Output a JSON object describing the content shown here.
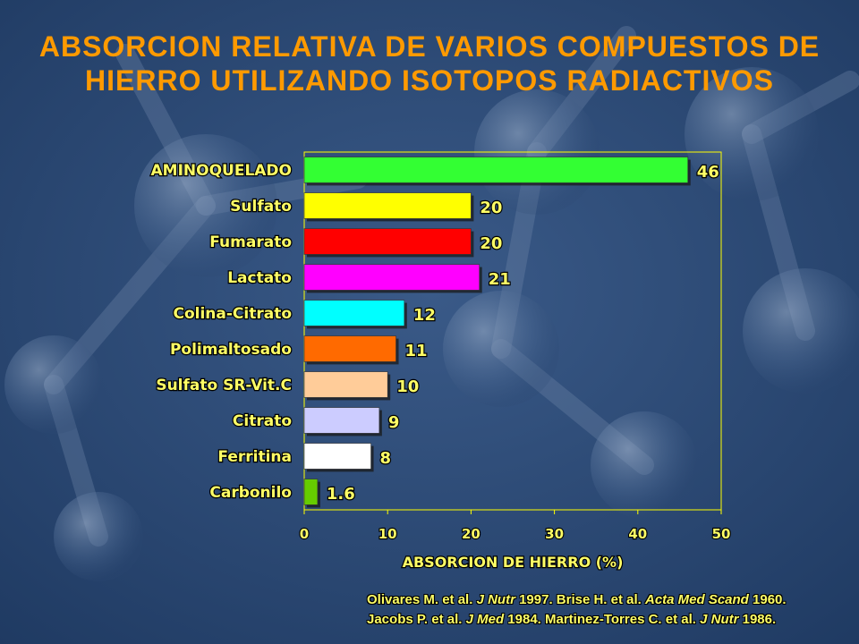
{
  "slide": {
    "title_line1": "ABSORCION RELATIVA DE VARIOS COMPUESTOS DE",
    "title_line2": "HIERRO UTILIZANDO ISOTOPOS RADIACTIVOS"
  },
  "colors": {
    "background": "#2a4670",
    "title": "#ff9a00",
    "label_text": "#ffff66",
    "plot_border": "#ffff00"
  },
  "chart_data": {
    "type": "bar",
    "orientation": "horizontal",
    "categories": [
      "AMINOQUELADO",
      "Sulfato",
      "Fumarato",
      "Lactato",
      "Colina-Citrato",
      "Polimaltosado",
      "Sulfato SR-Vit.C",
      "Citrato",
      "Ferritina",
      "Carbonilo"
    ],
    "values": [
      46,
      20,
      20,
      21,
      12,
      11,
      10,
      9,
      8,
      1.6
    ],
    "value_labels": [
      "46",
      "20",
      "20",
      "21",
      "12",
      "11",
      "10",
      "9",
      "8",
      "1.6"
    ],
    "bar_colors": [
      "#33ff33",
      "#ffff00",
      "#ff0000",
      "#ff00ff",
      "#00ffff",
      "#ff6a00",
      "#ffcc99",
      "#ccccff",
      "#ffffff",
      "#66cc00"
    ],
    "xlabel": "ABSORCION DE HIERRO (%)",
    "ylabel": "",
    "xlim": [
      0,
      50
    ],
    "xticks": [
      0,
      10,
      20,
      30,
      40,
      50
    ],
    "grid": false
  },
  "references": {
    "line1": [
      {
        "text": "Olivares M. et al. ",
        "italic": false
      },
      {
        "text": "J Nutr",
        "italic": true
      },
      {
        "text": " 1997. Brise H. et al. ",
        "italic": false
      },
      {
        "text": "Acta Med Scand",
        "italic": true
      },
      {
        "text": " 1960.",
        "italic": false
      }
    ],
    "line2": [
      {
        "text": "Jacobs P. et al. ",
        "italic": false
      },
      {
        "text": "J Med",
        "italic": true
      },
      {
        "text": " 1984. Martinez-Torres C. et al. ",
        "italic": false
      },
      {
        "text": "J Nutr",
        "italic": true
      },
      {
        "text": " 1986.",
        "italic": false
      }
    ]
  }
}
